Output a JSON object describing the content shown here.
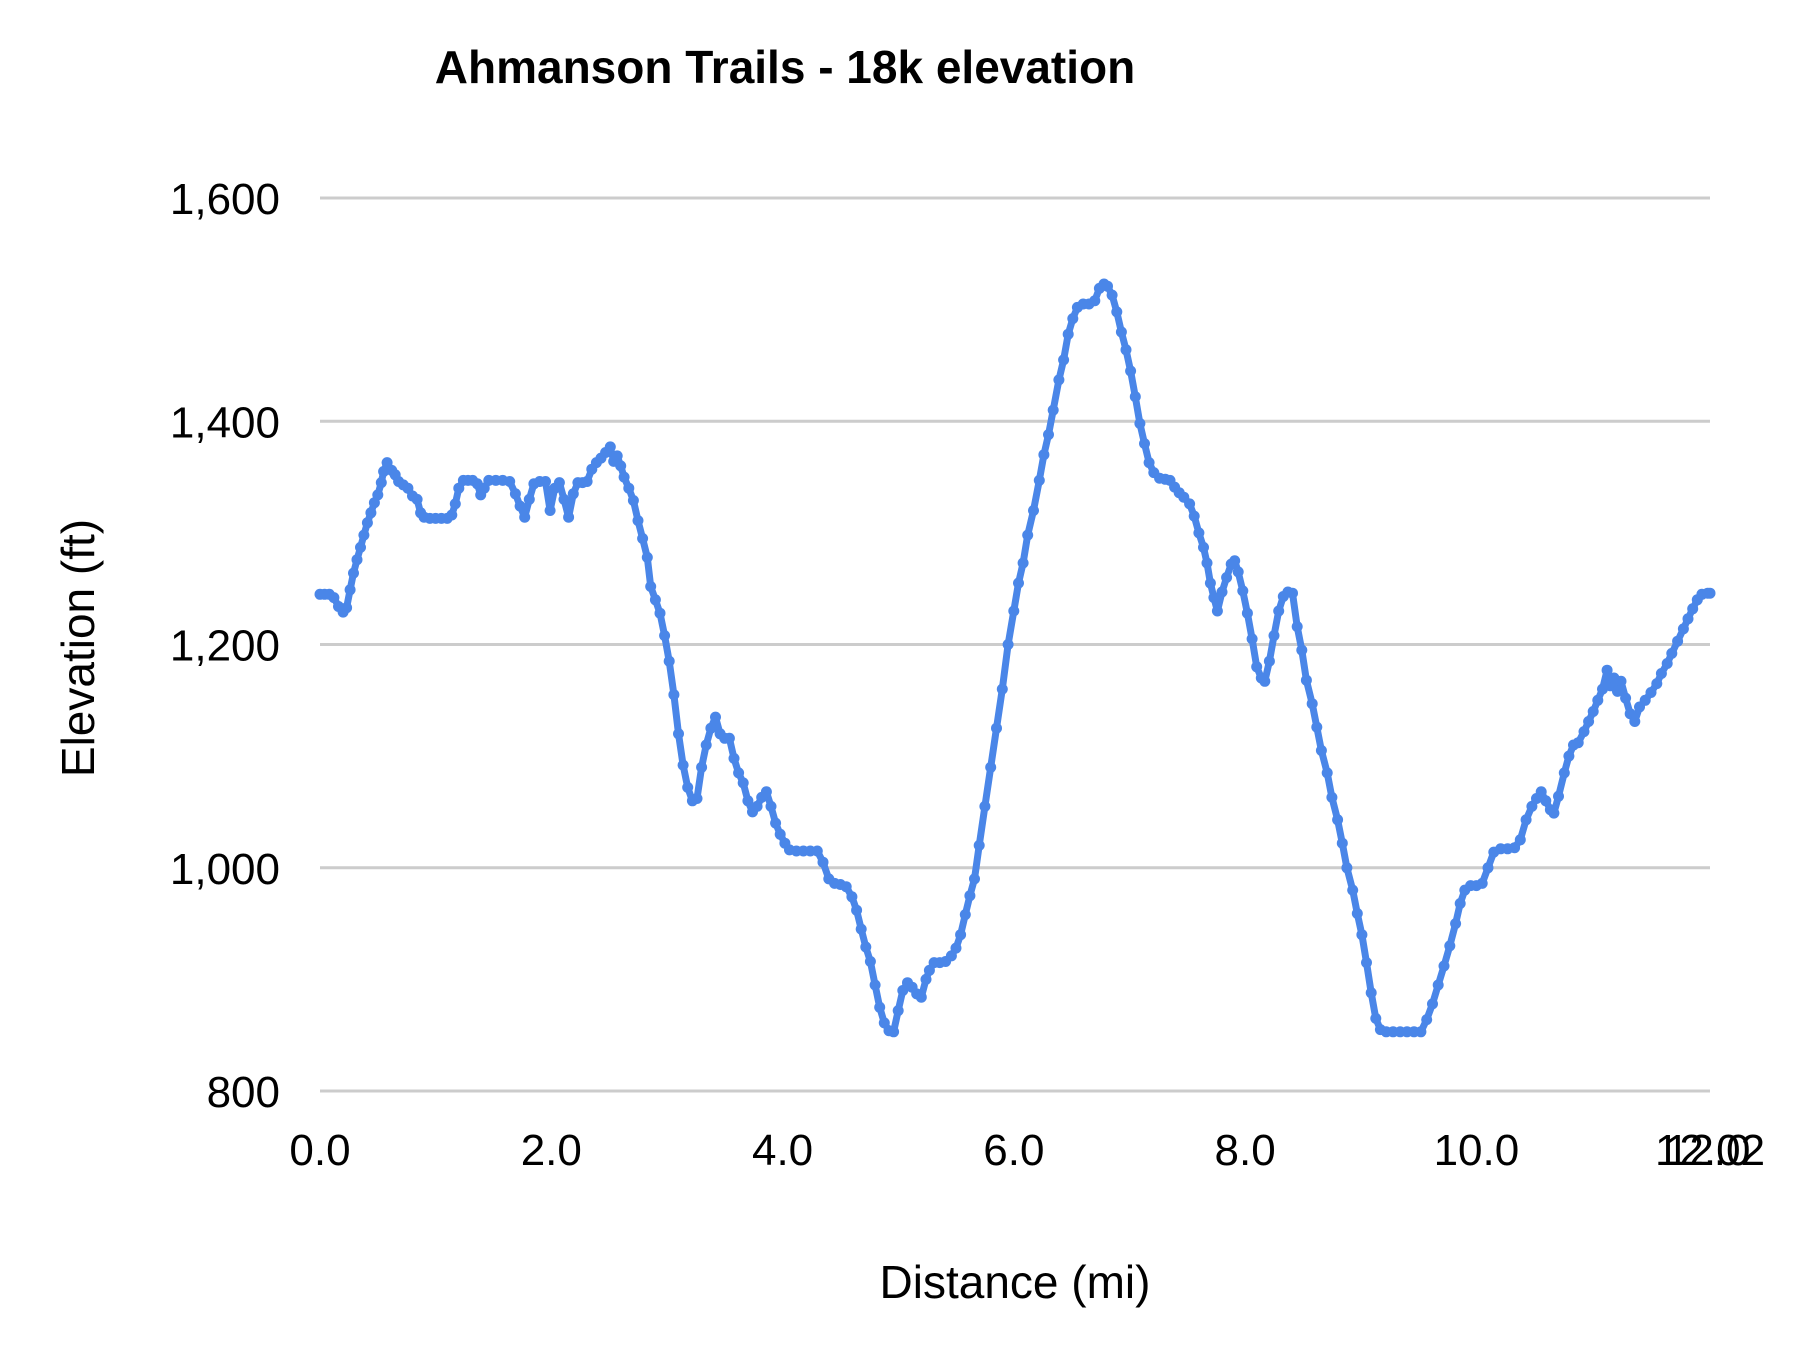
{
  "chart_data": {
    "type": "line",
    "title": "Ahmanson Trails - 18k elevation",
    "xlabel": "Distance (mi)",
    "ylabel": "Elevation (ft)",
    "xlim": [
      0,
      12.02
    ],
    "ylim": [
      800,
      1600
    ],
    "grid": "horizontal",
    "legend": "none",
    "line_color": "#4a86e8",
    "gridline_color": "#cccccc",
    "text_color": "#000000",
    "x_ticks": [
      {
        "value": 0,
        "label": "0.0"
      },
      {
        "value": 2,
        "label": "2.0"
      },
      {
        "value": 4,
        "label": "4.0"
      },
      {
        "value": 6,
        "label": "6.0"
      },
      {
        "value": 8,
        "label": "8.0"
      },
      {
        "value": 10,
        "label": "10.0"
      },
      {
        "value": 12,
        "label": "12.0"
      },
      {
        "value": 12.02,
        "label": "12.02"
      }
    ],
    "y_ticks": [
      {
        "value": 800,
        "label": "800"
      },
      {
        "value": 1000,
        "label": "1,000"
      },
      {
        "value": 1200,
        "label": "1,200"
      },
      {
        "value": 1400,
        "label": "1,400"
      },
      {
        "value": 1600,
        "label": "1,600"
      }
    ],
    "series": [
      {
        "name": "Elevation",
        "points": [
          [
            0.0,
            1245
          ],
          [
            0.04,
            1245
          ],
          [
            0.08,
            1245
          ],
          [
            0.12,
            1242
          ],
          [
            0.16,
            1234
          ],
          [
            0.2,
            1229
          ],
          [
            0.23,
            1233
          ],
          [
            0.26,
            1249
          ],
          [
            0.29,
            1264
          ],
          [
            0.32,
            1276
          ],
          [
            0.35,
            1287
          ],
          [
            0.38,
            1298
          ],
          [
            0.41,
            1309
          ],
          [
            0.44,
            1318
          ],
          [
            0.47,
            1327
          ],
          [
            0.5,
            1334
          ],
          [
            0.53,
            1345
          ],
          [
            0.55,
            1355
          ],
          [
            0.58,
            1363
          ],
          [
            0.62,
            1356
          ],
          [
            0.65,
            1352
          ],
          [
            0.68,
            1346
          ],
          [
            0.72,
            1343
          ],
          [
            0.76,
            1340
          ],
          [
            0.8,
            1333
          ],
          [
            0.84,
            1330
          ],
          [
            0.87,
            1318
          ],
          [
            0.9,
            1314
          ],
          [
            0.95,
            1313
          ],
          [
            1.0,
            1313
          ],
          [
            1.05,
            1313
          ],
          [
            1.1,
            1313
          ],
          [
            1.14,
            1316
          ],
          [
            1.17,
            1326
          ],
          [
            1.2,
            1340
          ],
          [
            1.24,
            1347
          ],
          [
            1.28,
            1347
          ],
          [
            1.32,
            1347
          ],
          [
            1.36,
            1344
          ],
          [
            1.39,
            1334
          ],
          [
            1.42,
            1340
          ],
          [
            1.46,
            1347
          ],
          [
            1.52,
            1347
          ],
          [
            1.58,
            1347
          ],
          [
            1.64,
            1346
          ],
          [
            1.69,
            1335
          ],
          [
            1.73,
            1324
          ],
          [
            1.77,
            1314
          ],
          [
            1.81,
            1330
          ],
          [
            1.85,
            1344
          ],
          [
            1.9,
            1346
          ],
          [
            1.95,
            1346
          ],
          [
            1.99,
            1320
          ],
          [
            2.03,
            1340
          ],
          [
            2.07,
            1345
          ],
          [
            2.11,
            1330
          ],
          [
            2.15,
            1314
          ],
          [
            2.19,
            1335
          ],
          [
            2.23,
            1345
          ],
          [
            2.27,
            1345
          ],
          [
            2.31,
            1346
          ],
          [
            2.35,
            1357
          ],
          [
            2.39,
            1363
          ],
          [
            2.43,
            1367
          ],
          [
            2.47,
            1372
          ],
          [
            2.51,
            1377
          ],
          [
            2.54,
            1364
          ],
          [
            2.57,
            1369
          ],
          [
            2.6,
            1360
          ],
          [
            2.63,
            1350
          ],
          [
            2.67,
            1340
          ],
          [
            2.71,
            1329
          ],
          [
            2.75,
            1311
          ],
          [
            2.79,
            1295
          ],
          [
            2.83,
            1278
          ],
          [
            2.86,
            1252
          ],
          [
            2.9,
            1240
          ],
          [
            2.94,
            1228
          ],
          [
            2.98,
            1208
          ],
          [
            3.02,
            1185
          ],
          [
            3.06,
            1155
          ],
          [
            3.1,
            1120
          ],
          [
            3.14,
            1092
          ],
          [
            3.18,
            1072
          ],
          [
            3.22,
            1060
          ],
          [
            3.26,
            1062
          ],
          [
            3.3,
            1090
          ],
          [
            3.34,
            1110
          ],
          [
            3.38,
            1125
          ],
          [
            3.42,
            1135
          ],
          [
            3.46,
            1120
          ],
          [
            3.5,
            1116
          ],
          [
            3.54,
            1116
          ],
          [
            3.58,
            1098
          ],
          [
            3.62,
            1085
          ],
          [
            3.66,
            1076
          ],
          [
            3.7,
            1060
          ],
          [
            3.74,
            1050
          ],
          [
            3.78,
            1055
          ],
          [
            3.82,
            1063
          ],
          [
            3.86,
            1068
          ],
          [
            3.9,
            1055
          ],
          [
            3.94,
            1040
          ],
          [
            3.98,
            1030
          ],
          [
            4.02,
            1022
          ],
          [
            4.06,
            1016
          ],
          [
            4.12,
            1015
          ],
          [
            4.18,
            1015
          ],
          [
            4.24,
            1015
          ],
          [
            4.3,
            1015
          ],
          [
            4.35,
            1005
          ],
          [
            4.4,
            990
          ],
          [
            4.45,
            986
          ],
          [
            4.5,
            985
          ],
          [
            4.55,
            983
          ],
          [
            4.6,
            974
          ],
          [
            4.64,
            962
          ],
          [
            4.68,
            945
          ],
          [
            4.72,
            929
          ],
          [
            4.76,
            916
          ],
          [
            4.8,
            895
          ],
          [
            4.84,
            875
          ],
          [
            4.88,
            861
          ],
          [
            4.92,
            854
          ],
          [
            4.96,
            853
          ],
          [
            5.0,
            872
          ],
          [
            5.04,
            890
          ],
          [
            5.08,
            897
          ],
          [
            5.12,
            893
          ],
          [
            5.16,
            887
          ],
          [
            5.2,
            884
          ],
          [
            5.24,
            900
          ],
          [
            5.27,
            908
          ],
          [
            5.31,
            915
          ],
          [
            5.36,
            915
          ],
          [
            5.41,
            916
          ],
          [
            5.46,
            921
          ],
          [
            5.5,
            928
          ],
          [
            5.54,
            940
          ],
          [
            5.58,
            958
          ],
          [
            5.62,
            975
          ],
          [
            5.66,
            990
          ],
          [
            5.7,
            1020
          ],
          [
            5.75,
            1055
          ],
          [
            5.8,
            1090
          ],
          [
            5.85,
            1125
          ],
          [
            5.9,
            1160
          ],
          [
            5.95,
            1200
          ],
          [
            6.0,
            1230
          ],
          [
            6.04,
            1255
          ],
          [
            6.08,
            1273
          ],
          [
            6.12,
            1298
          ],
          [
            6.17,
            1320
          ],
          [
            6.22,
            1347
          ],
          [
            6.26,
            1370
          ],
          [
            6.3,
            1388
          ],
          [
            6.34,
            1410
          ],
          [
            6.39,
            1437
          ],
          [
            6.43,
            1455
          ],
          [
            6.47,
            1478
          ],
          [
            6.51,
            1492
          ],
          [
            6.55,
            1502
          ],
          [
            6.6,
            1505
          ],
          [
            6.65,
            1505
          ],
          [
            6.7,
            1508
          ],
          [
            6.74,
            1519
          ],
          [
            6.78,
            1523
          ],
          [
            6.81,
            1521
          ],
          [
            6.85,
            1513
          ],
          [
            6.89,
            1498
          ],
          [
            6.93,
            1480
          ],
          [
            6.97,
            1464
          ],
          [
            7.01,
            1445
          ],
          [
            7.05,
            1422
          ],
          [
            7.09,
            1398
          ],
          [
            7.13,
            1380
          ],
          [
            7.17,
            1363
          ],
          [
            7.21,
            1354
          ],
          [
            7.26,
            1349
          ],
          [
            7.31,
            1348
          ],
          [
            7.35,
            1347
          ],
          [
            7.39,
            1341
          ],
          [
            7.43,
            1336
          ],
          [
            7.47,
            1332
          ],
          [
            7.52,
            1326
          ],
          [
            7.56,
            1315
          ],
          [
            7.6,
            1300
          ],
          [
            7.64,
            1287
          ],
          [
            7.67,
            1273
          ],
          [
            7.7,
            1255
          ],
          [
            7.73,
            1242
          ],
          [
            7.76,
            1230
          ],
          [
            7.8,
            1247
          ],
          [
            7.84,
            1260
          ],
          [
            7.88,
            1272
          ],
          [
            7.91,
            1275
          ],
          [
            7.94,
            1265
          ],
          [
            7.98,
            1248
          ],
          [
            8.02,
            1228
          ],
          [
            8.06,
            1205
          ],
          [
            8.1,
            1180
          ],
          [
            8.14,
            1170
          ],
          [
            8.17,
            1167
          ],
          [
            8.21,
            1185
          ],
          [
            8.25,
            1208
          ],
          [
            8.29,
            1230
          ],
          [
            8.33,
            1243
          ],
          [
            8.37,
            1247
          ],
          [
            8.41,
            1246
          ],
          [
            8.45,
            1216
          ],
          [
            8.49,
            1195
          ],
          [
            8.53,
            1168
          ],
          [
            8.58,
            1147
          ],
          [
            8.62,
            1126
          ],
          [
            8.66,
            1105
          ],
          [
            8.71,
            1085
          ],
          [
            8.75,
            1063
          ],
          [
            8.8,
            1043
          ],
          [
            8.84,
            1022
          ],
          [
            8.88,
            1000
          ],
          [
            8.93,
            980
          ],
          [
            8.97,
            959
          ],
          [
            9.01,
            940
          ],
          [
            9.05,
            915
          ],
          [
            9.09,
            888
          ],
          [
            9.13,
            865
          ],
          [
            9.17,
            855
          ],
          [
            9.22,
            853
          ],
          [
            9.28,
            853
          ],
          [
            9.34,
            853
          ],
          [
            9.4,
            853
          ],
          [
            9.46,
            853
          ],
          [
            9.52,
            853
          ],
          [
            9.57,
            864
          ],
          [
            9.62,
            878
          ],
          [
            9.67,
            895
          ],
          [
            9.72,
            912
          ],
          [
            9.77,
            930
          ],
          [
            9.82,
            950
          ],
          [
            9.86,
            968
          ],
          [
            9.9,
            980
          ],
          [
            9.95,
            984
          ],
          [
            10.0,
            984
          ],
          [
            10.05,
            986
          ],
          [
            10.1,
            1000
          ],
          [
            10.15,
            1014
          ],
          [
            10.21,
            1017
          ],
          [
            10.27,
            1017
          ],
          [
            10.33,
            1018
          ],
          [
            10.38,
            1025
          ],
          [
            10.43,
            1043
          ],
          [
            10.48,
            1055
          ],
          [
            10.52,
            1062
          ],
          [
            10.56,
            1068
          ],
          [
            10.6,
            1060
          ],
          [
            10.64,
            1052
          ],
          [
            10.67,
            1049
          ],
          [
            10.71,
            1064
          ],
          [
            10.76,
            1085
          ],
          [
            10.8,
            1100
          ],
          [
            10.84,
            1110
          ],
          [
            10.88,
            1112
          ],
          [
            10.93,
            1122
          ],
          [
            10.97,
            1131
          ],
          [
            11.01,
            1140
          ],
          [
            11.05,
            1150
          ],
          [
            11.09,
            1160
          ],
          [
            11.13,
            1177
          ],
          [
            11.16,
            1163
          ],
          [
            11.19,
            1170
          ],
          [
            11.22,
            1158
          ],
          [
            11.25,
            1167
          ],
          [
            11.29,
            1152
          ],
          [
            11.33,
            1138
          ],
          [
            11.37,
            1131
          ],
          [
            11.41,
            1144
          ],
          [
            11.46,
            1150
          ],
          [
            11.51,
            1157
          ],
          [
            11.56,
            1165
          ],
          [
            11.6,
            1174
          ],
          [
            11.65,
            1183
          ],
          [
            11.69,
            1192
          ],
          [
            11.74,
            1203
          ],
          [
            11.79,
            1214
          ],
          [
            11.83,
            1223
          ],
          [
            11.87,
            1232
          ],
          [
            11.91,
            1240
          ],
          [
            11.95,
            1245
          ],
          [
            12.0,
            1246
          ],
          [
            12.02,
            1246
          ]
        ]
      }
    ]
  }
}
